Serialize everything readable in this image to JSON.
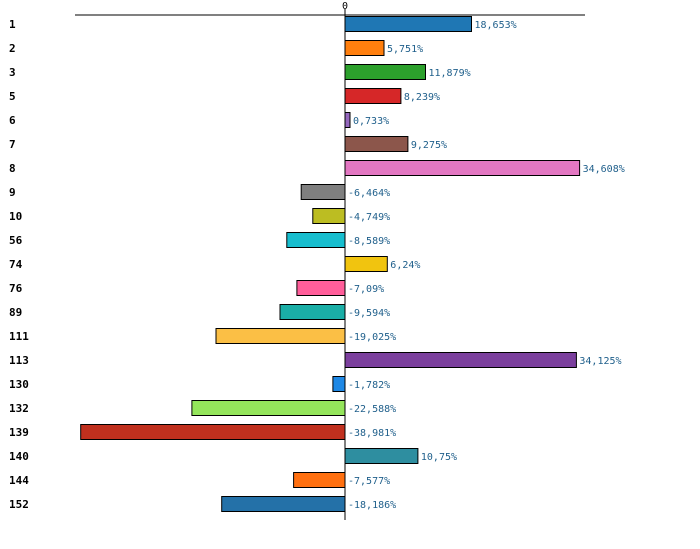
{
  "chart_data": {
    "type": "bar",
    "orientation": "horizontal",
    "title": "",
    "xlabel": "",
    "ylabel": "",
    "xlim": [
      -40,
      40
    ],
    "zero_label": "0",
    "value_suffix": "%",
    "decimal_separator": ",",
    "grid": false,
    "categories": [
      "1",
      "2",
      "3",
      "5",
      "6",
      "7",
      "8",
      "9",
      "10",
      "56",
      "74",
      "76",
      "89",
      "111",
      "113",
      "130",
      "132",
      "139",
      "140",
      "144",
      "152"
    ],
    "values": [
      18.653,
      5.751,
      11.879,
      8.239,
      0.733,
      9.275,
      34.608,
      -6.464,
      -4.749,
      -8.589,
      6.24,
      -7.09,
      -9.594,
      -19.025,
      34.125,
      -1.782,
      -22.588,
      -38.981,
      10.75,
      -7.577,
      -18.186
    ],
    "value_labels": [
      "18,653%",
      "5,751%",
      "11,879%",
      "8,239%",
      "0,733%",
      "9,275%",
      "34,608%",
      "-6,464%",
      "-4,749%",
      "-8,589%",
      "6,24%",
      "-7,09%",
      "-9,594%",
      "-19,025%",
      "34,125%",
      "-1,782%",
      "-22,588%",
      "-38,981%",
      "10,75%",
      "-7,577%",
      "-18,186%"
    ],
    "colors": [
      "#1f77b4",
      "#ff7f0e",
      "#2ca02c",
      "#d62728",
      "#9467bd",
      "#8c564b",
      "#e377c2",
      "#7f7f7f",
      "#bcbd22",
      "#17becf",
      "#f1c40f",
      "#ff5e9a",
      "#1aaea6",
      "#fbbf45",
      "#7b3f9d",
      "#1e88e5",
      "#94e55b",
      "#c0301e",
      "#2e8ea0",
      "#ff7010",
      "#2471a8"
    ]
  }
}
